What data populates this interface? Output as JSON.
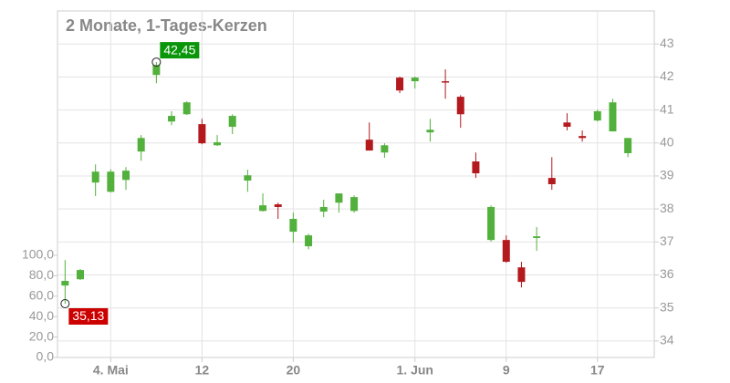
{
  "chart_data": {
    "type": "candlestick",
    "title": "2 Monate, 1-Tages-Kerzen",
    "categories": [
      null,
      null,
      null,
      "4. Mai",
      null,
      null,
      null,
      null,
      null,
      "12",
      null,
      null,
      null,
      null,
      null,
      "20",
      null,
      null,
      null,
      null,
      null,
      null,
      null,
      "1. Jun",
      null,
      null,
      null,
      null,
      null,
      "9",
      null,
      null,
      null,
      null,
      null,
      "17",
      null,
      null
    ],
    "open": [
      35.68,
      35.87,
      38.8,
      38.52,
      38.88,
      39.74,
      42.06,
      40.65,
      40.87,
      40.57,
      39.93,
      40.49,
      38.86,
      37.94,
      38.14,
      37.31,
      36.87,
      37.92,
      38.19,
      37.94,
      40.1,
      39.71,
      41.98,
      41.87,
      40.32,
      41.87,
      41.4,
      39.44,
      37.06,
      37.06,
      36.23,
      37.12,
      38.94,
      40.62,
      40.21,
      40.68,
      40.35,
      39.69
    ],
    "high": [
      36.45,
      36.18,
      39.35,
      39.2,
      39.27,
      40.24,
      42.45,
      40.96,
      41.26,
      40.73,
      40.24,
      40.87,
      39.19,
      38.47,
      38.19,
      37.89,
      37.25,
      38.28,
      38.47,
      38.41,
      40.62,
      39.99,
      42.01,
      42.01,
      40.73,
      42.23,
      41.45,
      39.71,
      38.11,
      37.2,
      36.4,
      37.45,
      39.57,
      40.9,
      40.38,
      41.01,
      41.34,
      40.15
    ],
    "low": [
      35.13,
      35.85,
      38.39,
      38.5,
      38.58,
      39.46,
      41.81,
      40.54,
      40.85,
      39.96,
      39.91,
      40.27,
      38.52,
      37.92,
      37.7,
      36.98,
      36.78,
      37.75,
      37.89,
      37.89,
      39.77,
      39.55,
      41.51,
      41.65,
      40.04,
      41.34,
      40.46,
      38.94,
      37.01,
      36.37,
      35.62,
      36.73,
      38.58,
      40.38,
      40.04,
      40.65,
      40.35,
      39.57
    ],
    "close": [
      35.82,
      36.15,
      39.13,
      39.13,
      39.16,
      40.15,
      42.36,
      40.82,
      41.23,
      39.99,
      40.02,
      40.82,
      39.02,
      38.11,
      38.06,
      37.7,
      37.2,
      38.06,
      38.47,
      38.36,
      39.77,
      39.93,
      41.59,
      41.98,
      40.4,
      41.84,
      40.87,
      39.08,
      38.06,
      36.4,
      35.79,
      37.17,
      38.75,
      40.49,
      40.15,
      40.96,
      41.23,
      40.15
    ],
    "up_color": "#52b03c",
    "down_color": "#b3191d",
    "ylim": [
      33.5,
      44.0
    ],
    "yticks": [
      34,
      35,
      36,
      37,
      38,
      39,
      40,
      41,
      42,
      43
    ],
    "y2lim": [
      0,
      339.3
    ],
    "y2ticks": [
      {
        "value": 0,
        "label": "0,0"
      },
      {
        "value": 20,
        "label": "20,0"
      },
      {
        "value": 40,
        "label": "40,0"
      },
      {
        "value": 60,
        "label": "60,0"
      },
      {
        "value": 80,
        "label": "80,0"
      },
      {
        "value": 100,
        "label": "100,0"
      }
    ],
    "grid": true,
    "annotations": [
      {
        "x_index": 6,
        "value": 42.45,
        "label": "42,45",
        "color": "#0a960a",
        "side": "above"
      },
      {
        "x_index": 0,
        "value": 35.13,
        "label": "35,13",
        "color": "#cc0000",
        "side": "below"
      }
    ]
  }
}
